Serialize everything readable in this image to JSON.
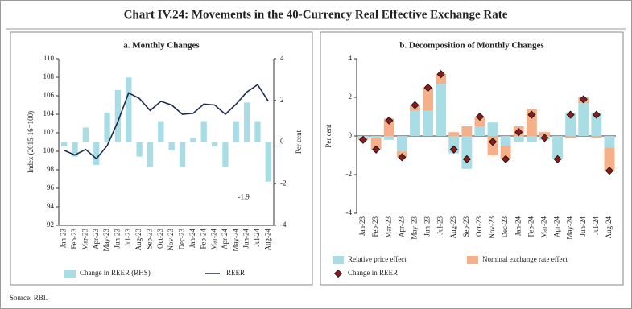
{
  "title": "Chart IV.24: Movements in the 40-Currency Real Effective Exchange Rate",
  "source": "Source: RBI.",
  "chart_data": [
    {
      "type": "combo",
      "title": "a. Monthly Changes",
      "ylabel": "Index (2015-16=100)",
      "y2label": "Per cent",
      "categories": [
        "Jan-23",
        "Feb-23",
        "Mar-23",
        "Apr-23",
        "May-23",
        "Jun-23",
        "Jul-23",
        "Aug-23",
        "Sep-23",
        "Oct-23",
        "Nov-23",
        "Dec-23",
        "Jan-24",
        "Feb-24",
        "Mar-24",
        "Apr-24",
        "May-24",
        "Jun-24",
        "Jul-24",
        "Aug-24"
      ],
      "series": [
        {
          "name": "Change in REER (RHS)",
          "type": "bar",
          "axis": "y2",
          "color": "#a9dde6",
          "values": [
            -0.2,
            -0.7,
            0.7,
            -1.1,
            1.4,
            2.5,
            3.1,
            -0.7,
            -1.2,
            1.0,
            -0.4,
            -1.2,
            0.2,
            1.0,
            -0.2,
            -1.2,
            1.0,
            1.9,
            1.0,
            -1.9
          ]
        },
        {
          "name": "REER",
          "type": "line",
          "color": "#1f2a50",
          "values": [
            100.1,
            99.6,
            100.2,
            99.2,
            100.6,
            103.2,
            106.3,
            105.7,
            104.4,
            105.4,
            105.0,
            104.0,
            104.1,
            105.1,
            105.0,
            104.0,
            105.1,
            106.4,
            107.2,
            105.4
          ]
        }
      ],
      "annotations": [
        {
          "text": "-1.9"
        }
      ],
      "ylim": [
        92,
        110
      ],
      "yticks": [
        92,
        94,
        96,
        98,
        100,
        102,
        104,
        106,
        108,
        110
      ],
      "y2lim": [
        -4,
        4
      ],
      "y2ticks": [
        -4,
        -2,
        0,
        2,
        4
      ]
    },
    {
      "type": "stacked-bar",
      "title": "b. Decomposition of Monthly Changes",
      "ylabel": "Per cent",
      "categories": [
        "Jan-23",
        "Feb-23",
        "Mar-23",
        "Apr-23",
        "May-23",
        "Jun-23",
        "Jul-23",
        "Aug-23",
        "Sep-23",
        "Oct-23",
        "Nov-23",
        "Dec-23",
        "Jan-24",
        "Feb-24",
        "Mar-24",
        "Apr-24",
        "May-24",
        "Jun-24",
        "Jul-24",
        "Aug-24"
      ],
      "series": [
        {
          "name": "Relative price effect",
          "type": "bar",
          "color": "#a9dde6",
          "values": [
            -0.1,
            -0.1,
            -0.2,
            -0.8,
            1.3,
            1.3,
            2.7,
            -0.9,
            -1.7,
            0.5,
            0.7,
            -0.5,
            -0.3,
            -0.3,
            -0.2,
            -1.2,
            1.2,
            1.7,
            1.2,
            -0.6
          ]
        },
        {
          "name": "Nominal exchange rate effect",
          "type": "bar",
          "color": "#f5b08a",
          "values": [
            -0.1,
            -0.6,
            0.9,
            -0.3,
            0.3,
            1.2,
            0.5,
            0.2,
            0.5,
            0.5,
            -1.0,
            -0.7,
            0.5,
            1.4,
            0.2,
            0.0,
            -0.1,
            0.3,
            -0.1,
            -1.2
          ]
        },
        {
          "name": "Change in REER",
          "type": "marker",
          "color": "#8b1a1a",
          "values": [
            -0.2,
            -0.7,
            0.8,
            -1.1,
            1.6,
            2.5,
            3.2,
            -0.7,
            -1.2,
            1.0,
            -0.3,
            -1.2,
            0.2,
            1.1,
            -0.1,
            -1.2,
            1.1,
            1.9,
            1.1,
            -1.8
          ]
        }
      ],
      "ylim": [
        -4,
        4
      ],
      "yticks": [
        -4,
        -2,
        0,
        2,
        4
      ]
    }
  ]
}
